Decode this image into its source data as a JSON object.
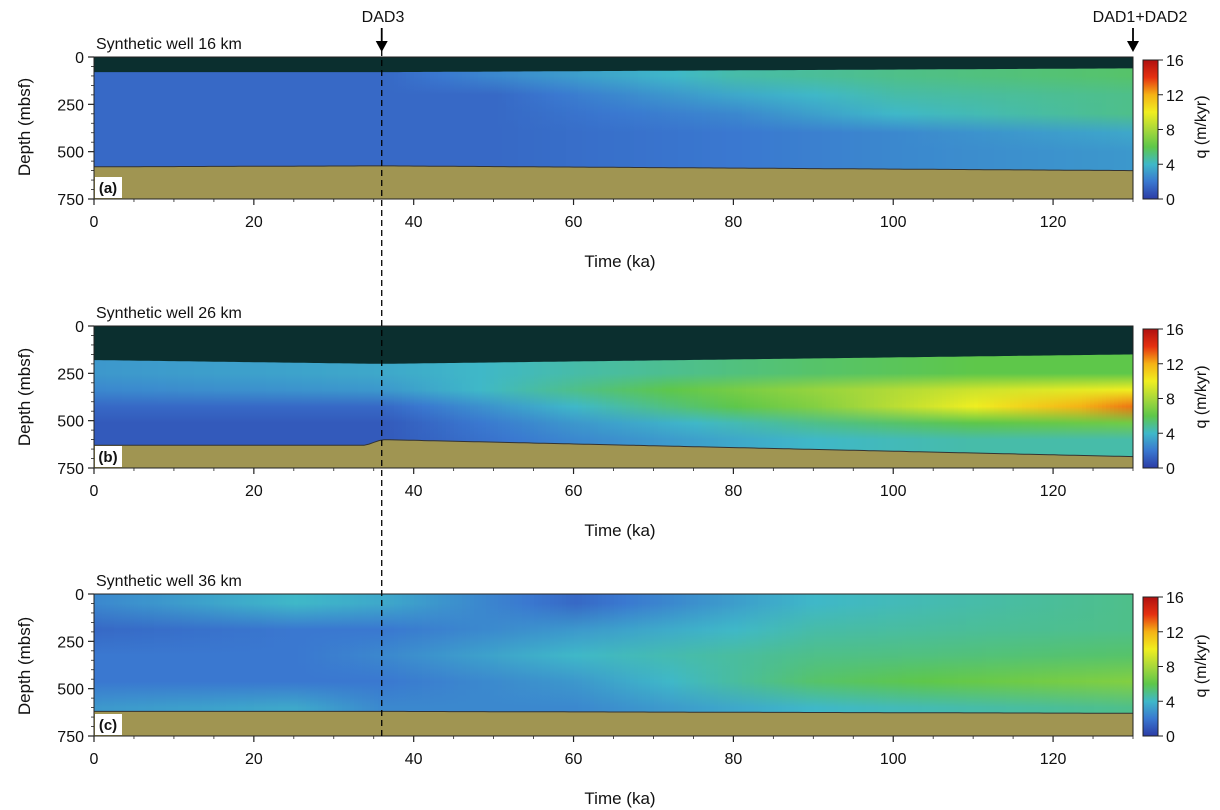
{
  "chart_data": [
    {
      "type": "heatmap",
      "panel_label": "(a)",
      "title": "Synthetic well 16 km",
      "xlabel": "Time (ka)",
      "ylabel": "Depth (mbsf)",
      "xlim": [
        0,
        130
      ],
      "ylim": [
        750,
        0
      ],
      "x_ticks": [
        0,
        20,
        40,
        60,
        80,
        100,
        120
      ],
      "y_ticks": [
        0,
        250,
        500,
        750
      ],
      "colorbar": {
        "label": "q (m/kyr)",
        "ticks": [
          0,
          4,
          8,
          12,
          16
        ],
        "range": [
          0,
          16
        ]
      },
      "seafloor_depth": {
        "x": [
          0,
          36,
          130
        ],
        "y": [
          80,
          80,
          60
        ]
      },
      "basement_depth": {
        "x": [
          0,
          36,
          130
        ],
        "y": [
          580,
          575,
          600
        ]
      },
      "flux_field": [
        {
          "x": 0,
          "q": [
            1.5,
            1.5,
            1.5,
            1.5,
            1.5
          ]
        },
        {
          "x": 36,
          "q": [
            1.5,
            1.5,
            1.5,
            1.5,
            1.5
          ]
        },
        {
          "x": 50,
          "q": [
            2.5,
            1.5,
            1.5,
            1.5,
            1.5
          ]
        },
        {
          "x": 80,
          "q": [
            4.5,
            3.5,
            2.5,
            2.0,
            2.0
          ]
        },
        {
          "x": 100,
          "q": [
            5.0,
            4.5,
            4.0,
            2.5,
            2.5
          ]
        },
        {
          "x": 130,
          "q": [
            5.5,
            5.0,
            5.0,
            3.5,
            3.0
          ]
        }
      ],
      "flux_depths": [
        100,
        200,
        300,
        400,
        500
      ]
    },
    {
      "type": "heatmap",
      "panel_label": "(b)",
      "title": "Synthetic well 26 km",
      "xlabel": "Time (ka)",
      "ylabel": "Depth (mbsf)",
      "xlim": [
        0,
        130
      ],
      "ylim": [
        750,
        0
      ],
      "x_ticks": [
        0,
        20,
        40,
        60,
        80,
        100,
        120
      ],
      "y_ticks": [
        0,
        250,
        500,
        750
      ],
      "colorbar": {
        "label": "q (m/kyr)",
        "ticks": [
          0,
          4,
          8,
          12,
          16
        ],
        "range": [
          0,
          16
        ]
      },
      "seafloor_depth": {
        "x": [
          0,
          36,
          130
        ],
        "y": [
          180,
          200,
          150
        ]
      },
      "basement_depth": {
        "x": [
          0,
          34,
          36,
          130
        ],
        "y": [
          630,
          630,
          600,
          690
        ]
      },
      "flux_field": [
        {
          "x": 0,
          "q": [
            3.0,
            2.5,
            1.5,
            1.0,
            1.0
          ]
        },
        {
          "x": 36,
          "q": [
            3.5,
            3.0,
            1.5,
            1.0,
            1.0
          ]
        },
        {
          "x": 60,
          "q": [
            4.5,
            5.0,
            4.0,
            3.0,
            2.5
          ]
        },
        {
          "x": 90,
          "q": [
            5.5,
            7.5,
            7.0,
            5.0,
            4.0
          ]
        },
        {
          "x": 110,
          "q": [
            6.0,
            9.0,
            10.0,
            6.0,
            4.5
          ]
        },
        {
          "x": 130,
          "q": [
            6.0,
            10.0,
            13.0,
            6.5,
            4.5
          ]
        }
      ],
      "flux_depths": [
        250,
        330,
        400,
        500,
        600
      ]
    },
    {
      "type": "heatmap",
      "panel_label": "(c)",
      "title": "Synthetic well 36 km",
      "xlabel": "Time (ka)",
      "ylabel": "Depth (mbsf)",
      "xlim": [
        0,
        130
      ],
      "ylim": [
        750,
        0
      ],
      "x_ticks": [
        0,
        20,
        40,
        60,
        80,
        100,
        120
      ],
      "y_ticks": [
        0,
        250,
        500,
        750
      ],
      "colorbar": {
        "label": "q (m/kyr)",
        "ticks": [
          0,
          4,
          8,
          12,
          16
        ],
        "range": [
          0,
          16
        ]
      },
      "seafloor_depth": {
        "x": [
          0,
          130
        ],
        "y": [
          0,
          0
        ]
      },
      "basement_depth": {
        "x": [
          0,
          36,
          130
        ],
        "y": [
          620,
          620,
          630
        ]
      },
      "flux_field": [
        {
          "x": 0,
          "q": [
            2.5,
            1.5,
            2.0,
            2.0,
            3.0
          ]
        },
        {
          "x": 25,
          "q": [
            4.0,
            2.0,
            2.0,
            2.0,
            3.5
          ]
        },
        {
          "x": 36,
          "q": [
            3.5,
            2.0,
            2.5,
            2.0,
            2.5
          ]
        },
        {
          "x": 60,
          "q": [
            1.5,
            3.0,
            4.0,
            3.0,
            2.5
          ]
        },
        {
          "x": 90,
          "q": [
            4.0,
            4.5,
            5.0,
            5.5,
            4.0
          ]
        },
        {
          "x": 130,
          "q": [
            5.0,
            5.0,
            5.5,
            7.0,
            5.0
          ]
        }
      ],
      "flux_depths": [
        50,
        200,
        350,
        500,
        600
      ]
    }
  ],
  "markers": [
    {
      "label": "DAD3",
      "x": 36
    },
    {
      "label": "DAD1+DAD2",
      "x": 130
    }
  ],
  "colors": {
    "colormap": [
      "#2c3ca6",
      "#3a78d0",
      "#3fb8c8",
      "#5ec74a",
      "#a8d83a",
      "#f0ee20",
      "#f5b215",
      "#e53010",
      "#b01010"
    ],
    "water_column": "#0b2f2f",
    "basement": "#a09552",
    "marker_line": "#000000"
  }
}
